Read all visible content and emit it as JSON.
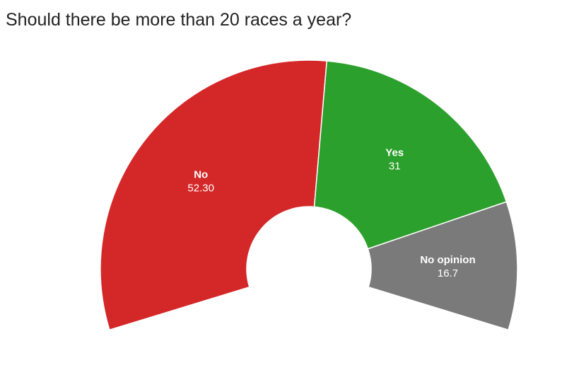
{
  "chart_data": {
    "type": "pie",
    "title": "Should there be more than 20 races a year?",
    "categories": [
      "No",
      "Yes",
      "No opinion"
    ],
    "values": [
      52.3,
      31,
      16.7
    ],
    "value_labels": [
      "52.30",
      "31",
      "16.7"
    ],
    "colors": [
      "#d42728",
      "#2ca02c",
      "#7a7a7a"
    ]
  }
}
